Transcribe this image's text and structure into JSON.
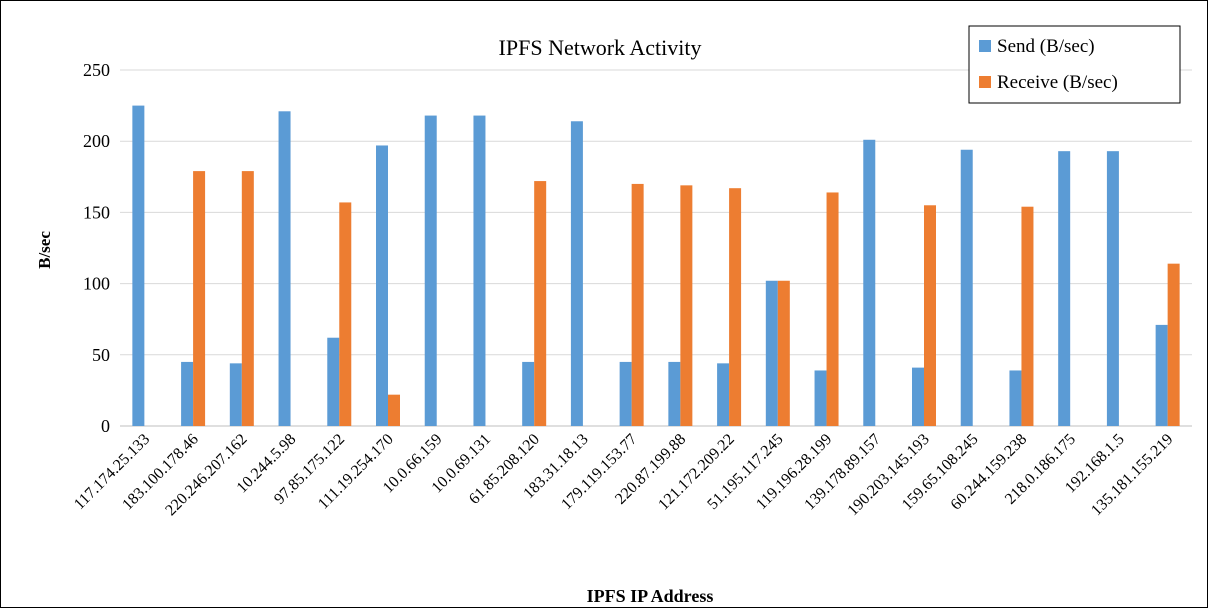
{
  "chart_data": {
    "type": "bar",
    "title": "IPFS Network Activity",
    "x_label": "IPFS IP Address",
    "y_label": "B/sec",
    "categories": [
      "117.174.25.133",
      "183.100.178.46",
      "220.246.207.162",
      "10.244.5.98",
      "97.85.175.122",
      "111.19.254.170",
      "10.0.66.159",
      "10.0.69.131",
      "61.85.208.120",
      "183.31.18.13",
      "179.119.153.77",
      "220.87.199.88",
      "121.172.209.22",
      "51.195.117.245",
      "119.196.28.199",
      "139.178.89.157",
      "190.203.145.193",
      "159.65.108.245",
      "60.244.159.238",
      "218.0.186.175",
      "192.168.1.5",
      "135.181.155.219"
    ],
    "series": [
      {
        "name": "Send (B/sec)",
        "color": "#5b9bd5",
        "values": [
          225,
          45,
          44,
          221,
          62,
          197,
          218,
          218,
          45,
          214,
          45,
          45,
          44,
          102,
          39,
          201,
          41,
          194,
          39,
          193,
          193,
          71
        ]
      },
      {
        "name": "Receive (B/sec)",
        "color": "#ed7d31",
        "values": [
          0,
          179,
          179,
          0,
          157,
          22,
          0,
          0,
          172,
          0,
          170,
          169,
          167,
          102,
          164,
          0,
          155,
          0,
          154,
          0,
          0,
          114
        ]
      }
    ],
    "ylim": [
      0,
      250
    ],
    "yticks": [
      0,
      50,
      100,
      150,
      200,
      250
    ],
    "grid": true,
    "legend": "top-right"
  }
}
